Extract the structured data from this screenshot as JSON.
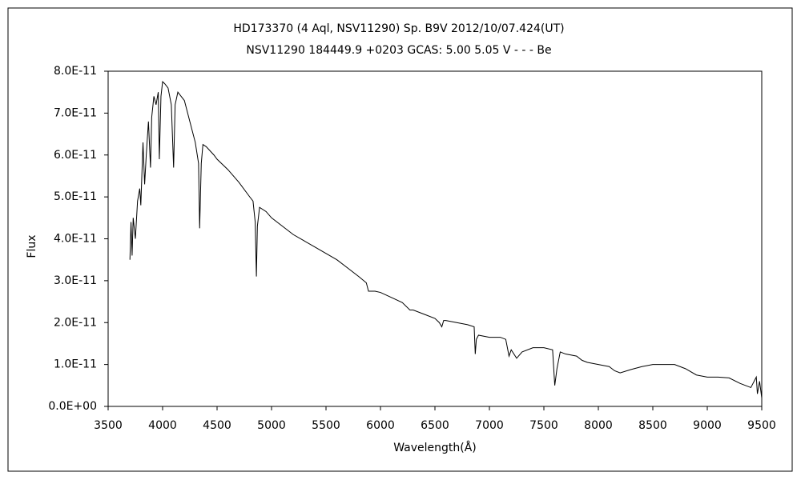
{
  "chart_data": {
    "type": "line",
    "title": "HD173370 (4 Aql, NSV11290)    Sp. B9V    2012/10/07.424(UT)",
    "subtitle": "NSV11290 184449.9 +0203 GCAS: 5.00 5.05 V - - - Be",
    "x_label": "Wavelength(Å)",
    "y_label": "Flux",
    "xlim": [
      3500,
      9500
    ],
    "xticks": [
      3500,
      4000,
      4500,
      5000,
      5500,
      6000,
      6500,
      7000,
      7500,
      8000,
      8500,
      9000,
      9500
    ],
    "ylim": [
      0,
      8e-11
    ],
    "yticks": [
      {
        "value": 0,
        "label": "0.0E+00"
      },
      {
        "value": 1e-11,
        "label": "1.0E-11"
      },
      {
        "value": 2e-11,
        "label": "2.0E-11"
      },
      {
        "value": 3e-11,
        "label": "3.0E-11"
      },
      {
        "value": 4e-11,
        "label": "4.0E-11"
      },
      {
        "value": 5e-11,
        "label": "5.0E-11"
      },
      {
        "value": 6e-11,
        "label": "6.0E-11"
      },
      {
        "value": 7e-11,
        "label": "7.0E-11"
      },
      {
        "value": 8e-11,
        "label": "8.0E-11"
      }
    ],
    "grid": false,
    "series": [
      {
        "color": "#000000",
        "x": [
          3700,
          3710,
          3720,
          3730,
          3750,
          3770,
          3790,
          3800,
          3820,
          3835,
          3850,
          3870,
          3889,
          3900,
          3920,
          3940,
          3960,
          3970,
          3985,
          4000,
          4020,
          4050,
          4080,
          4101,
          4115,
          4140,
          4170,
          4200,
          4250,
          4300,
          4330,
          4340,
          4355,
          4370,
          4400,
          4471,
          4500,
          4600,
          4700,
          4800,
          4830,
          4850,
          4861,
          4870,
          4890,
          4950,
          5000,
          5100,
          5200,
          5300,
          5400,
          5500,
          5600,
          5700,
          5800,
          5870,
          5890,
          5950,
          6000,
          6100,
          6200,
          6270,
          6300,
          6400,
          6500,
          6540,
          6563,
          6580,
          6600,
          6700,
          6800,
          6860,
          6870,
          6880,
          6900,
          7000,
          7100,
          7150,
          7180,
          7200,
          7250,
          7300,
          7400,
          7500,
          7580,
          7600,
          7620,
          7650,
          7700,
          7800,
          7850,
          7900,
          8000,
          8100,
          8150,
          8200,
          8300,
          8400,
          8500,
          8600,
          8700,
          8800,
          8900,
          9000,
          9100,
          9200,
          9300,
          9400,
          9450,
          9460,
          9480,
          9500
        ],
        "values": [
          3.5e-11,
          4.4e-11,
          3.6e-11,
          4.5e-11,
          4e-11,
          4.9e-11,
          5.2e-11,
          4.8e-11,
          6.3e-11,
          5.3e-11,
          6e-11,
          6.8e-11,
          5.7e-11,
          6.9e-11,
          7.4e-11,
          7.2e-11,
          7.5e-11,
          5.9e-11,
          7.4e-11,
          7.75e-11,
          7.7e-11,
          7.6e-11,
          7.2e-11,
          5.7e-11,
          7.2e-11,
          7.5e-11,
          7.4e-11,
          7.3e-11,
          6.8e-11,
          6.3e-11,
          5.8e-11,
          4.25e-11,
          5.8e-11,
          6.25e-11,
          6.2e-11,
          6e-11,
          5.9e-11,
          5.65e-11,
          5.35e-11,
          5e-11,
          4.9e-11,
          4.4e-11,
          3.1e-11,
          4.3e-11,
          4.75e-11,
          4.65e-11,
          4.5e-11,
          4.3e-11,
          4.1e-11,
          3.95e-11,
          3.8e-11,
          3.65e-11,
          3.5e-11,
          3.3e-11,
          3.1e-11,
          2.95e-11,
          2.75e-11,
          2.75e-11,
          2.72e-11,
          2.6e-11,
          2.48e-11,
          2.3e-11,
          2.3e-11,
          2.2e-11,
          2.1e-11,
          2e-11,
          1.9e-11,
          2.05e-11,
          2.05e-11,
          2e-11,
          1.95e-11,
          1.9e-11,
          1.25e-11,
          1.6e-11,
          1.7e-11,
          1.65e-11,
          1.65e-11,
          1.6e-11,
          1.2e-11,
          1.35e-11,
          1.15e-11,
          1.3e-11,
          1.4e-11,
          1.4e-11,
          1.35e-11,
          5e-12,
          9e-12,
          1.3e-11,
          1.25e-11,
          1.2e-11,
          1.1e-11,
          1.05e-11,
          1e-11,
          9.5e-12,
          8.5e-12,
          8e-12,
          8.8e-12,
          9.5e-12,
          1e-11,
          1e-11,
          1e-11,
          9e-12,
          7.5e-12,
          7e-12,
          7e-12,
          6.8e-12,
          5.5e-12,
          4.5e-12,
          7e-12,
          3e-12,
          6e-12,
          2e-12
        ]
      }
    ]
  }
}
